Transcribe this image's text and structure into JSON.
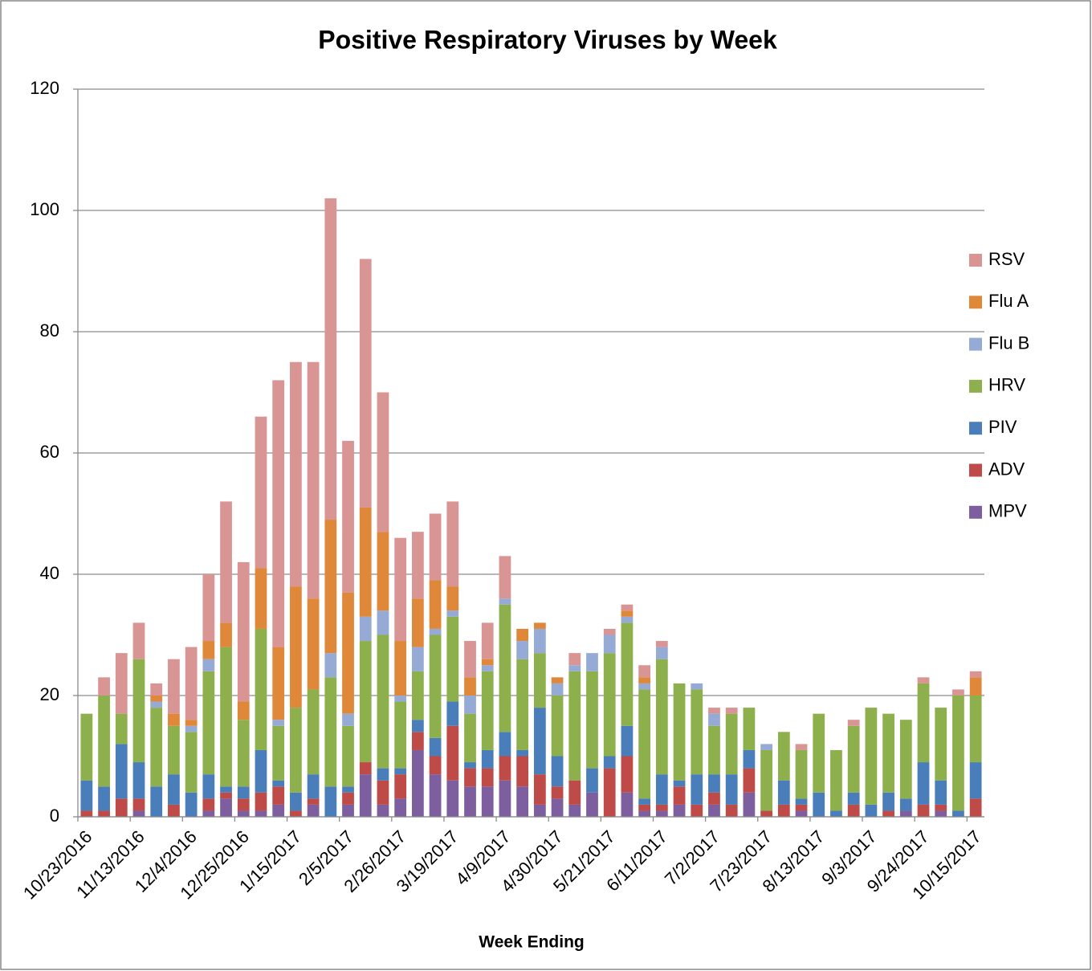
{
  "chart_data": {
    "type": "stacked_bar",
    "title": "Positive Respiratory Viruses by Week",
    "x_label": "Week Ending",
    "categories": [
      "10/23/2016",
      null,
      null,
      "11/13/2016",
      null,
      null,
      "12/4/2016",
      null,
      null,
      "12/25/2016",
      null,
      null,
      "1/15/2017",
      null,
      null,
      "2/5/2017",
      null,
      null,
      "2/26/2017",
      null,
      null,
      "3/19/2017",
      null,
      null,
      "4/9/2017",
      null,
      null,
      "4/30/2017",
      null,
      null,
      "5/21/2017",
      null,
      null,
      "6/11/2017",
      null,
      null,
      "7/2/2017",
      null,
      null,
      "7/23/2017",
      null,
      null,
      "8/13/2017",
      null,
      null,
      "9/3/2017",
      null,
      null,
      "9/24/2017",
      null,
      null,
      "10/15/2017"
    ],
    "series": [
      {
        "name": "MPV",
        "color": "#7d5fa0",
        "values": [
          0,
          0,
          0,
          1,
          0,
          0,
          0,
          1,
          3,
          1,
          1,
          2,
          0,
          2,
          0,
          2,
          7,
          2,
          3,
          11,
          7,
          6,
          5,
          5,
          6,
          5,
          2,
          3,
          2,
          4,
          0,
          4,
          1,
          1,
          2,
          0,
          2,
          0,
          4,
          0,
          0,
          1,
          0,
          0,
          0,
          0,
          0,
          1,
          0,
          1,
          0,
          0
        ]
      },
      {
        "name": "ADV",
        "color": "#be4b48",
        "values": [
          1,
          1,
          3,
          2,
          0,
          2,
          0,
          2,
          1,
          2,
          3,
          3,
          1,
          1,
          0,
          2,
          2,
          4,
          4,
          3,
          3,
          9,
          3,
          3,
          4,
          5,
          5,
          2,
          4,
          0,
          8,
          6,
          1,
          1,
          3,
          2,
          2,
          2,
          4,
          1,
          2,
          1,
          0,
          0,
          2,
          0,
          1,
          0,
          2,
          1,
          0,
          3
        ]
      },
      {
        "name": "PIV",
        "color": "#4a7ebb",
        "values": [
          5,
          4,
          9,
          6,
          5,
          5,
          4,
          4,
          1,
          2,
          7,
          1,
          3,
          4,
          5,
          1,
          0,
          2,
          1,
          2,
          3,
          4,
          1,
          3,
          4,
          1,
          11,
          5,
          0,
          4,
          2,
          5,
          1,
          5,
          1,
          5,
          3,
          5,
          3,
          0,
          4,
          1,
          4,
          1,
          2,
          2,
          3,
          2,
          7,
          4,
          1,
          6
        ]
      },
      {
        "name": "HRV",
        "color": "#8db04d",
        "values": [
          11,
          15,
          5,
          17,
          13,
          8,
          10,
          17,
          23,
          11,
          20,
          9,
          14,
          14,
          18,
          10,
          20,
          22,
          11,
          8,
          17,
          14,
          8,
          13,
          21,
          15,
          9,
          10,
          18,
          16,
          17,
          17,
          18,
          19,
          16,
          14,
          8,
          10,
          7,
          10,
          8,
          8,
          13,
          10,
          11,
          16,
          13,
          13,
          13,
          12,
          19,
          11
        ]
      },
      {
        "name": "Flu B",
        "color": "#95abd6",
        "values": [
          0,
          0,
          0,
          0,
          1,
          0,
          1,
          2,
          0,
          0,
          0,
          1,
          0,
          0,
          4,
          2,
          4,
          4,
          1,
          4,
          1,
          1,
          3,
          1,
          1,
          3,
          4,
          2,
          1,
          3,
          3,
          1,
          1,
          2,
          0,
          1,
          2,
          0,
          0,
          1,
          0,
          0,
          0,
          0,
          0,
          0,
          0,
          0,
          0,
          0,
          0,
          0
        ]
      },
      {
        "name": "Flu A",
        "color": "#e0883a",
        "values": [
          0,
          0,
          0,
          0,
          1,
          2,
          1,
          3,
          4,
          3,
          10,
          12,
          20,
          15,
          22,
          20,
          18,
          13,
          9,
          8,
          8,
          4,
          3,
          1,
          0,
          2,
          1,
          1,
          0,
          0,
          0,
          1,
          1,
          0,
          0,
          0,
          0,
          0,
          0,
          0,
          0,
          0,
          0,
          0,
          0,
          0,
          0,
          0,
          0,
          0,
          0,
          3
        ]
      },
      {
        "name": "RSV",
        "color": "#d99594",
        "values": [
          0,
          3,
          10,
          6,
          2,
          9,
          12,
          11,
          20,
          23,
          25,
          44,
          37,
          39,
          53,
          25,
          41,
          23,
          17,
          11,
          11,
          14,
          6,
          6,
          7,
          0,
          0,
          0,
          2,
          0,
          1,
          1,
          2,
          1,
          0,
          0,
          1,
          1,
          0,
          0,
          0,
          1,
          0,
          0,
          1,
          0,
          0,
          0,
          1,
          0,
          1,
          1
        ]
      }
    ],
    "ylim": [
      0,
      120
    ],
    "yticks": [
      0,
      20,
      40,
      60,
      80,
      100,
      120
    ],
    "grid": true,
    "legend": "right"
  }
}
